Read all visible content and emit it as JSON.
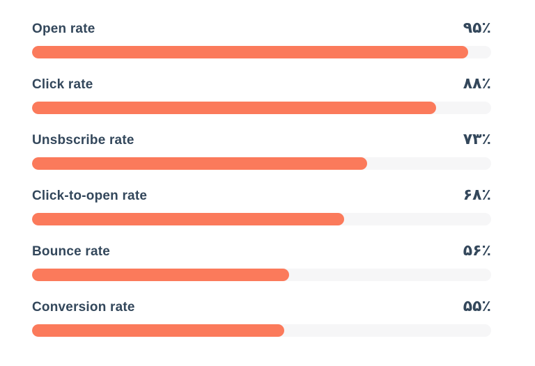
{
  "colors": {
    "bar_fill": "#fb7a5b",
    "bar_track": "#f6f6f7",
    "text": "#33475b",
    "background": "#ffffff"
  },
  "chart_data": {
    "type": "bar",
    "orientation": "horizontal",
    "title": "",
    "xlabel": "",
    "ylabel": "",
    "xlim": [
      0,
      100
    ],
    "grid": false,
    "legend": false,
    "value_label_style": "persian-digits",
    "categories": [
      "Open rate",
      "Click rate",
      "Unsbscribe rate",
      "Click-to-open rate",
      "Bounce rate",
      "Conversion rate"
    ],
    "values": [
      95,
      88,
      73,
      68,
      56,
      55
    ],
    "rows": [
      {
        "label": "Open rate",
        "value_label": "۹۵٪",
        "percent": 95
      },
      {
        "label": "Click rate",
        "value_label": "۸۸٪",
        "percent": 88
      },
      {
        "label": "Unsbscribe rate",
        "value_label": "۷۳٪",
        "percent": 73
      },
      {
        "label": "Click-to-open rate",
        "value_label": "۶۸٪",
        "percent": 68
      },
      {
        "label": "Bounce rate",
        "value_label": "۵۶٪",
        "percent": 56
      },
      {
        "label": "Conversion rate",
        "value_label": "۵۵٪",
        "percent": 55
      }
    ]
  }
}
